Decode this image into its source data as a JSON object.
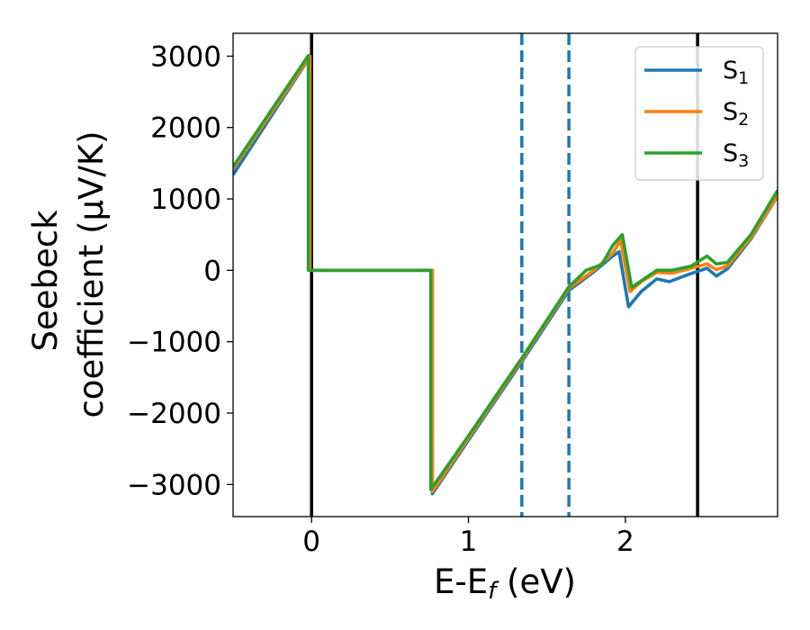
{
  "chart_data": {
    "type": "line",
    "title": "",
    "xlabel": "E-E",
    "xlabel_sub": "f",
    "xlabel_unit": " (eV)",
    "ylabel_line1": "Seebeck",
    "ylabel_line2": "coefficient  (μV/K)",
    "xlim": [
      -0.5,
      2.97
    ],
    "ylim": [
      -3450,
      3320
    ],
    "x_ticks": [
      0,
      1,
      2
    ],
    "x_tick_labels": [
      "0",
      "1",
      "2"
    ],
    "y_ticks": [
      3000,
      2000,
      1000,
      0,
      -1000,
      -2000,
      -3000
    ],
    "y_tick_labels": [
      "3000",
      "2000",
      "1000",
      "0",
      "−1000",
      "−2000",
      "−3000"
    ],
    "grid": false,
    "legend_position": "top-right",
    "vertical_lines": [
      {
        "x": 0.0,
        "style": "solid",
        "color": "#000000"
      },
      {
        "x": 2.46,
        "style": "solid",
        "color": "#000000"
      },
      {
        "x": 1.34,
        "style": "dashed",
        "color": "#1f77b4"
      },
      {
        "x": 1.64,
        "style": "dashed",
        "color": "#1f77b4"
      }
    ],
    "series": [
      {
        "name": "S",
        "name_sub": "1",
        "color": "#1f77b4",
        "points": [
          [
            -0.5,
            1340
          ],
          [
            -0.02,
            2960
          ],
          [
            -0.02,
            0
          ],
          [
            0.77,
            0
          ],
          [
            0.77,
            -3130
          ],
          [
            1.0,
            -2380
          ],
          [
            1.34,
            -1280
          ],
          [
            1.64,
            -280
          ],
          [
            1.8,
            -20
          ],
          [
            1.92,
            200
          ],
          [
            1.96,
            260
          ],
          [
            2.02,
            -510
          ],
          [
            2.1,
            -300
          ],
          [
            2.2,
            -120
          ],
          [
            2.28,
            -160
          ],
          [
            2.4,
            -60
          ],
          [
            2.52,
            30
          ],
          [
            2.58,
            -80
          ],
          [
            2.65,
            20
          ],
          [
            2.8,
            440
          ],
          [
            2.97,
            1040
          ]
        ]
      },
      {
        "name": "S",
        "name_sub": "2",
        "color": "#ff7f0e",
        "points": [
          [
            -0.5,
            1420
          ],
          [
            -0.01,
            3000
          ],
          [
            -0.01,
            0
          ],
          [
            0.77,
            0
          ],
          [
            0.77,
            -3100
          ],
          [
            1.0,
            -2350
          ],
          [
            1.34,
            -1250
          ],
          [
            1.64,
            -250
          ],
          [
            1.8,
            0
          ],
          [
            1.92,
            240
          ],
          [
            1.97,
            420
          ],
          [
            2.03,
            -300
          ],
          [
            2.1,
            -160
          ],
          [
            2.2,
            -30
          ],
          [
            2.3,
            -40
          ],
          [
            2.42,
            30
          ],
          [
            2.52,
            90
          ],
          [
            2.58,
            10
          ],
          [
            2.65,
            60
          ],
          [
            2.8,
            460
          ],
          [
            2.97,
            1050
          ]
        ]
      },
      {
        "name": "S",
        "name_sub": "3",
        "color": "#2ca02c",
        "points": [
          [
            -0.5,
            1450
          ],
          [
            -0.02,
            3010
          ],
          [
            -0.02,
            0
          ],
          [
            0.76,
            0
          ],
          [
            0.76,
            -3070
          ],
          [
            1.0,
            -2320
          ],
          [
            1.34,
            -1230
          ],
          [
            1.64,
            -230
          ],
          [
            1.75,
            0
          ],
          [
            1.85,
            80
          ],
          [
            1.92,
            350
          ],
          [
            1.98,
            500
          ],
          [
            2.04,
            -240
          ],
          [
            2.1,
            -150
          ],
          [
            2.2,
            0
          ],
          [
            2.3,
            0
          ],
          [
            2.42,
            60
          ],
          [
            2.52,
            200
          ],
          [
            2.58,
            90
          ],
          [
            2.65,
            110
          ],
          [
            2.8,
            500
          ],
          [
            2.97,
            1120
          ]
        ]
      }
    ]
  }
}
